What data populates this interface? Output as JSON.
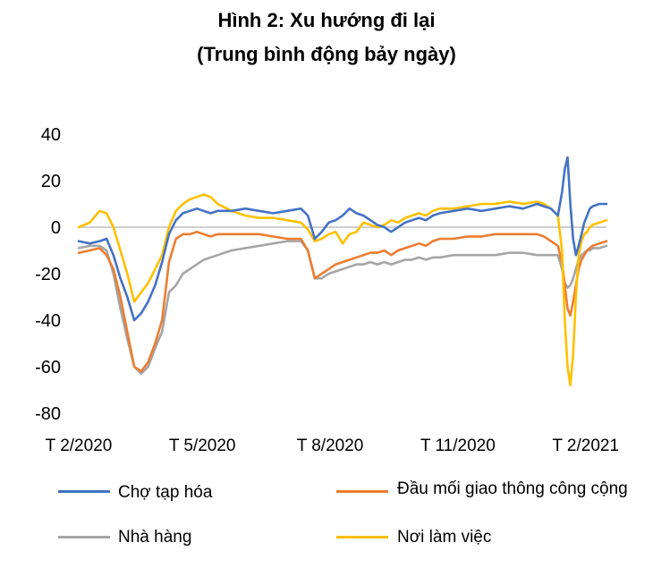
{
  "chart_data": {
    "type": "line",
    "title": "Hình 2: Xu hướng đi lại",
    "subtitle": "(Trung bình động bảy ngày)",
    "xlabel": "",
    "ylabel": "",
    "ylim": [
      -80,
      40
    ],
    "yticks": [
      40,
      20,
      0,
      -20,
      -40,
      -60,
      -80
    ],
    "xlim": [
      0,
      380
    ],
    "xticks": [
      {
        "label": "T 2/2020",
        "x": 0
      },
      {
        "label": "T 5/2020",
        "x": 89
      },
      {
        "label": "T 8/2020",
        "x": 181
      },
      {
        "label": "T 11/2020",
        "x": 273
      },
      {
        "label": "T 2/2021",
        "x": 365
      }
    ],
    "grid": false,
    "legend_position": "bottom",
    "series": [
      {
        "name": "Chợ tạp hóa",
        "color": "#4472C4",
        "x": [
          0,
          8,
          15,
          20,
          25,
          30,
          35,
          40,
          45,
          50,
          55,
          60,
          65,
          70,
          75,
          80,
          85,
          90,
          95,
          100,
          110,
          120,
          130,
          140,
          150,
          160,
          165,
          170,
          175,
          180,
          185,
          190,
          195,
          200,
          205,
          210,
          215,
          220,
          225,
          230,
          235,
          240,
          245,
          250,
          255,
          260,
          270,
          280,
          290,
          300,
          310,
          320,
          330,
          335,
          340,
          345,
          348,
          350,
          352,
          354,
          356,
          358,
          360,
          362,
          364,
          366,
          368,
          370,
          375,
          380
        ],
        "values": [
          -6,
          -7,
          -6,
          -5,
          -12,
          -22,
          -30,
          -40,
          -37,
          -32,
          -25,
          -15,
          -3,
          3,
          6,
          7,
          8,
          7,
          6,
          7,
          7,
          8,
          7,
          6,
          7,
          8,
          5,
          -5,
          -2,
          2,
          3,
          5,
          8,
          6,
          5,
          3,
          1,
          0,
          -2,
          0,
          2,
          3,
          4,
          3,
          5,
          6,
          7,
          8,
          7,
          8,
          9,
          8,
          10,
          9,
          8,
          5,
          15,
          25,
          30,
          10,
          -5,
          -12,
          -8,
          -3,
          2,
          5,
          8,
          9,
          10,
          10
        ]
      },
      {
        "name": "Đầu mối giao thông công cộng",
        "color": "#ED7D31",
        "x": [
          0,
          8,
          15,
          20,
          25,
          30,
          35,
          40,
          45,
          50,
          55,
          60,
          65,
          70,
          75,
          80,
          85,
          90,
          95,
          100,
          110,
          120,
          130,
          140,
          150,
          160,
          165,
          170,
          175,
          180,
          185,
          190,
          195,
          200,
          205,
          210,
          215,
          220,
          225,
          230,
          235,
          240,
          245,
          250,
          255,
          260,
          270,
          280,
          290,
          300,
          310,
          320,
          330,
          335,
          340,
          345,
          348,
          350,
          352,
          354,
          356,
          358,
          360,
          362,
          364,
          366,
          368,
          370,
          375,
          380
        ],
        "values": [
          -11,
          -10,
          -9,
          -12,
          -18,
          -30,
          -45,
          -60,
          -62,
          -58,
          -50,
          -40,
          -15,
          -5,
          -3,
          -3,
          -2,
          -3,
          -4,
          -3,
          -3,
          -3,
          -3,
          -4,
          -5,
          -5,
          -10,
          -22,
          -20,
          -18,
          -16,
          -15,
          -14,
          -13,
          -12,
          -11,
          -11,
          -10,
          -12,
          -10,
          -9,
          -8,
          -7,
          -8,
          -6,
          -5,
          -5,
          -4,
          -4,
          -3,
          -3,
          -3,
          -3,
          -4,
          -6,
          -8,
          -15,
          -25,
          -35,
          -38,
          -32,
          -25,
          -18,
          -14,
          -12,
          -10,
          -9,
          -8,
          -7,
          -6
        ]
      },
      {
        "name": "Nhà hàng",
        "color": "#A5A5A5",
        "x": [
          0,
          8,
          15,
          20,
          25,
          30,
          35,
          40,
          45,
          50,
          55,
          60,
          65,
          70,
          75,
          80,
          85,
          90,
          95,
          100,
          110,
          120,
          130,
          140,
          150,
          160,
          165,
          170,
          175,
          180,
          185,
          190,
          195,
          200,
          205,
          210,
          215,
          220,
          225,
          230,
          235,
          240,
          245,
          250,
          255,
          260,
          270,
          280,
          290,
          300,
          310,
          320,
          330,
          335,
          340,
          345,
          348,
          350,
          352,
          354,
          356,
          358,
          360,
          362,
          364,
          366,
          368,
          370,
          375,
          380
        ],
        "values": [
          -9,
          -8,
          -8,
          -10,
          -20,
          -35,
          -48,
          -60,
          -63,
          -60,
          -52,
          -45,
          -28,
          -25,
          -20,
          -18,
          -16,
          -14,
          -13,
          -12,
          -10,
          -9,
          -8,
          -7,
          -6,
          -6,
          -10,
          -22,
          -22,
          -20,
          -19,
          -18,
          -17,
          -16,
          -16,
          -15,
          -16,
          -15,
          -16,
          -15,
          -14,
          -14,
          -13,
          -14,
          -13,
          -13,
          -12,
          -12,
          -12,
          -12,
          -11,
          -11,
          -12,
          -12,
          -12,
          -12,
          -18,
          -24,
          -26,
          -25,
          -22,
          -18,
          -14,
          -12,
          -11,
          -10,
          -10,
          -9,
          -9,
          -8
        ]
      },
      {
        "name": "Nơi làm việc",
        "color": "#FFC000",
        "x": [
          0,
          8,
          15,
          20,
          25,
          30,
          35,
          40,
          45,
          50,
          55,
          60,
          65,
          70,
          75,
          80,
          85,
          90,
          95,
          100,
          110,
          120,
          130,
          140,
          150,
          160,
          165,
          170,
          175,
          180,
          185,
          190,
          195,
          200,
          205,
          210,
          215,
          220,
          225,
          230,
          235,
          240,
          245,
          250,
          255,
          260,
          270,
          280,
          290,
          300,
          310,
          320,
          330,
          335,
          340,
          345,
          348,
          350,
          352,
          354,
          356,
          358,
          360,
          362,
          364,
          366,
          368,
          370,
          375,
          380
        ],
        "values": [
          0,
          2,
          7,
          6,
          0,
          -10,
          -20,
          -32,
          -28,
          -24,
          -18,
          -12,
          0,
          7,
          10,
          12,
          13,
          14,
          13,
          10,
          7,
          5,
          4,
          4,
          3,
          2,
          -1,
          -6,
          -5,
          -3,
          -2,
          -7,
          -3,
          -2,
          2,
          1,
          0,
          1,
          3,
          2,
          4,
          5,
          6,
          5,
          7,
          8,
          8,
          9,
          10,
          10,
          11,
          10,
          11,
          10,
          8,
          5,
          -10,
          -40,
          -60,
          -68,
          -55,
          -30,
          -12,
          -6,
          -3,
          -2,
          0,
          1,
          2,
          3
        ]
      }
    ]
  }
}
